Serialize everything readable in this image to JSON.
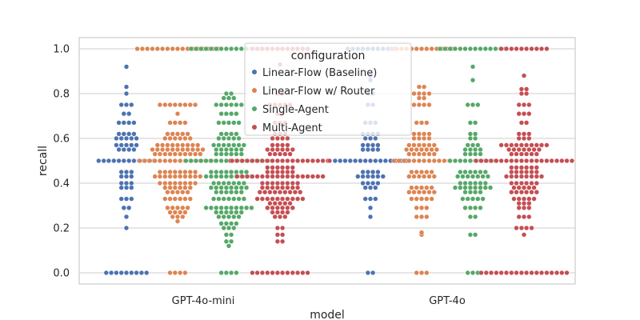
{
  "chart_data": {
    "type": "scatter",
    "subtype": "swarm",
    "title": "",
    "xlabel": "model",
    "ylabel": "recall",
    "ylim": [
      -0.05,
      1.05
    ],
    "yticks": [
      "0.0",
      "0.2",
      "0.4",
      "0.6",
      "0.8",
      "1.0"
    ],
    "ytick_values": [
      0.0,
      0.2,
      0.4,
      0.6,
      0.8,
      1.0
    ],
    "grid": "horizontal",
    "legend_title": "configuration",
    "legend_position": "top-center",
    "categories": [
      "GPT-4o-mini",
      "GPT-4o"
    ],
    "series": [
      {
        "name": "Linear-Flow (Baseline)",
        "color": "#4c72b0",
        "groups": [
          {
            "model": "GPT-4o-mini",
            "values": [
              {
                "y": 0.0,
                "n": 9
              },
              {
                "y": 0.2,
                "n": 1
              },
              {
                "y": 0.25,
                "n": 1
              },
              {
                "y": 0.29,
                "n": 2
              },
              {
                "y": 0.33,
                "n": 3
              },
              {
                "y": 0.38,
                "n": 3
              },
              {
                "y": 0.4,
                "n": 3
              },
              {
                "y": 0.43,
                "n": 3
              },
              {
                "y": 0.45,
                "n": 3
              },
              {
                "y": 0.5,
                "n": 12
              },
              {
                "y": 0.55,
                "n": 4
              },
              {
                "y": 0.57,
                "n": 5
              },
              {
                "y": 0.6,
                "n": 5
              },
              {
                "y": 0.62,
                "n": 4
              },
              {
                "y": 0.67,
                "n": 4
              },
              {
                "y": 0.71,
                "n": 2
              },
              {
                "y": 0.75,
                "n": 3
              },
              {
                "y": 0.8,
                "n": 1
              },
              {
                "y": 0.83,
                "n": 1
              },
              {
                "y": 0.92,
                "n": 1
              }
            ]
          },
          {
            "model": "GPT-4o",
            "values": [
              {
                "y": 0.0,
                "n": 2
              },
              {
                "y": 0.25,
                "n": 1
              },
              {
                "y": 0.29,
                "n": 1
              },
              {
                "y": 0.33,
                "n": 3
              },
              {
                "y": 0.38,
                "n": 3
              },
              {
                "y": 0.4,
                "n": 4
              },
              {
                "y": 0.43,
                "n": 6
              },
              {
                "y": 0.45,
                "n": 4
              },
              {
                "y": 0.5,
                "n": 15
              },
              {
                "y": 0.55,
                "n": 4
              },
              {
                "y": 0.57,
                "n": 4
              },
              {
                "y": 0.6,
                "n": 3
              },
              {
                "y": 0.62,
                "n": 4
              },
              {
                "y": 0.67,
                "n": 3
              },
              {
                "y": 0.75,
                "n": 2
              },
              {
                "y": 0.8,
                "n": 2
              },
              {
                "y": 0.86,
                "n": 1
              },
              {
                "y": 0.88,
                "n": 1
              },
              {
                "y": 1.0,
                "n": 10
              }
            ]
          }
        ]
      },
      {
        "name": "Linear-Flow w/ Router",
        "color": "#dd8452",
        "groups": [
          {
            "model": "GPT-4o-mini",
            "values": [
              {
                "y": 0.0,
                "n": 4
              },
              {
                "y": 0.23,
                "n": 1
              },
              {
                "y": 0.25,
                "n": 3
              },
              {
                "y": 0.27,
                "n": 4
              },
              {
                "y": 0.29,
                "n": 5
              },
              {
                "y": 0.33,
                "n": 6
              },
              {
                "y": 0.36,
                "n": 5
              },
              {
                "y": 0.38,
                "n": 6
              },
              {
                "y": 0.4,
                "n": 8
              },
              {
                "y": 0.43,
                "n": 10
              },
              {
                "y": 0.45,
                "n": 8
              },
              {
                "y": 0.5,
                "n": 16
              },
              {
                "y": 0.53,
                "n": 10
              },
              {
                "y": 0.55,
                "n": 11
              },
              {
                "y": 0.57,
                "n": 9
              },
              {
                "y": 0.6,
                "n": 6
              },
              {
                "y": 0.62,
                "n": 5
              },
              {
                "y": 0.67,
                "n": 4
              },
              {
                "y": 0.71,
                "n": 1
              },
              {
                "y": 0.75,
                "n": 8
              },
              {
                "y": 1.0,
                "n": 17
              }
            ]
          },
          {
            "model": "GPT-4o",
            "values": [
              {
                "y": 0.0,
                "n": 3
              },
              {
                "y": 0.17,
                "n": 1
              },
              {
                "y": 0.18,
                "n": 1
              },
              {
                "y": 0.25,
                "n": 3
              },
              {
                "y": 0.29,
                "n": 3
              },
              {
                "y": 0.33,
                "n": 5
              },
              {
                "y": 0.36,
                "n": 6
              },
              {
                "y": 0.38,
                "n": 5
              },
              {
                "y": 0.43,
                "n": 6
              },
              {
                "y": 0.45,
                "n": 5
              },
              {
                "y": 0.5,
                "n": 12
              },
              {
                "y": 0.53,
                "n": 6
              },
              {
                "y": 0.55,
                "n": 7
              },
              {
                "y": 0.57,
                "n": 6
              },
              {
                "y": 0.6,
                "n": 4
              },
              {
                "y": 0.62,
                "n": 4
              },
              {
                "y": 0.67,
                "n": 3
              },
              {
                "y": 0.75,
                "n": 4
              },
              {
                "y": 0.78,
                "n": 2
              },
              {
                "y": 0.8,
                "n": 4
              },
              {
                "y": 0.83,
                "n": 2
              },
              {
                "y": 1.0,
                "n": 13
              }
            ]
          }
        ]
      },
      {
        "name": "Single-Agent",
        "color": "#55a868",
        "groups": [
          {
            "model": "GPT-4o-mini",
            "values": [
              {
                "y": 0.0,
                "n": 4
              },
              {
                "y": 0.12,
                "n": 1
              },
              {
                "y": 0.14,
                "n": 2
              },
              {
                "y": 0.17,
                "n": 2
              },
              {
                "y": 0.2,
                "n": 3
              },
              {
                "y": 0.22,
                "n": 4
              },
              {
                "y": 0.25,
                "n": 5
              },
              {
                "y": 0.27,
                "n": 6
              },
              {
                "y": 0.29,
                "n": 10
              },
              {
                "y": 0.33,
                "n": 7
              },
              {
                "y": 0.36,
                "n": 6
              },
              {
                "y": 0.38,
                "n": 8
              },
              {
                "y": 0.4,
                "n": 7
              },
              {
                "y": 0.43,
                "n": 10
              },
              {
                "y": 0.45,
                "n": 8
              },
              {
                "y": 0.5,
                "n": 18
              },
              {
                "y": 0.53,
                "n": 6
              },
              {
                "y": 0.55,
                "n": 6
              },
              {
                "y": 0.57,
                "n": 7
              },
              {
                "y": 0.6,
                "n": 5
              },
              {
                "y": 0.62,
                "n": 4
              },
              {
                "y": 0.67,
                "n": 5
              },
              {
                "y": 0.71,
                "n": 4
              },
              {
                "y": 0.75,
                "n": 6
              },
              {
                "y": 0.78,
                "n": 3
              },
              {
                "y": 0.8,
                "n": 2
              },
              {
                "y": 1.0,
                "n": 16
              }
            ]
          },
          {
            "model": "GPT-4o",
            "values": [
              {
                "y": 0.0,
                "n": 3
              },
              {
                "y": 0.17,
                "n": 2
              },
              {
                "y": 0.25,
                "n": 2
              },
              {
                "y": 0.29,
                "n": 4
              },
              {
                "y": 0.33,
                "n": 5
              },
              {
                "y": 0.36,
                "n": 4
              },
              {
                "y": 0.38,
                "n": 8
              },
              {
                "y": 0.4,
                "n": 6
              },
              {
                "y": 0.43,
                "n": 7
              },
              {
                "y": 0.45,
                "n": 6
              },
              {
                "y": 0.5,
                "n": 10
              },
              {
                "y": 0.53,
                "n": 4
              },
              {
                "y": 0.55,
                "n": 4
              },
              {
                "y": 0.57,
                "n": 3
              },
              {
                "y": 0.6,
                "n": 2
              },
              {
                "y": 0.62,
                "n": 2
              },
              {
                "y": 0.67,
                "n": 2
              },
              {
                "y": 0.75,
                "n": 3
              },
              {
                "y": 0.86,
                "n": 1
              },
              {
                "y": 0.92,
                "n": 1
              },
              {
                "y": 1.0,
                "n": 14
              }
            ]
          }
        ]
      },
      {
        "name": "Multi-Agent",
        "color": "#c44e52",
        "groups": [
          {
            "model": "GPT-4o-mini",
            "values": [
              {
                "y": 0.0,
                "n": 12
              },
              {
                "y": 0.14,
                "n": 2
              },
              {
                "y": 0.17,
                "n": 2
              },
              {
                "y": 0.2,
                "n": 2
              },
              {
                "y": 0.25,
                "n": 3
              },
              {
                "y": 0.27,
                "n": 4
              },
              {
                "y": 0.29,
                "n": 6
              },
              {
                "y": 0.31,
                "n": 5
              },
              {
                "y": 0.33,
                "n": 10
              },
              {
                "y": 0.36,
                "n": 9
              },
              {
                "y": 0.38,
                "n": 8
              },
              {
                "y": 0.4,
                "n": 8
              },
              {
                "y": 0.43,
                "n": 18
              },
              {
                "y": 0.45,
                "n": 6
              },
              {
                "y": 0.47,
                "n": 6
              },
              {
                "y": 0.5,
                "n": 22
              },
              {
                "y": 0.53,
                "n": 5
              },
              {
                "y": 0.55,
                "n": 6
              },
              {
                "y": 0.57,
                "n": 4
              },
              {
                "y": 0.6,
                "n": 4
              },
              {
                "y": 0.62,
                "n": 3
              },
              {
                "y": 0.67,
                "n": 3
              },
              {
                "y": 0.71,
                "n": 2
              },
              {
                "y": 0.75,
                "n": 5
              },
              {
                "y": 0.8,
                "n": 2
              },
              {
                "y": 0.93,
                "n": 1
              },
              {
                "y": 1.0,
                "n": 12
              }
            ]
          },
          {
            "model": "GPT-4o",
            "values": [
              {
                "y": 0.0,
                "n": 18
              },
              {
                "y": 0.17,
                "n": 1
              },
              {
                "y": 0.2,
                "n": 4
              },
              {
                "y": 0.25,
                "n": 3
              },
              {
                "y": 0.29,
                "n": 3
              },
              {
                "y": 0.31,
                "n": 3
              },
              {
                "y": 0.33,
                "n": 5
              },
              {
                "y": 0.36,
                "n": 6
              },
              {
                "y": 0.38,
                "n": 5
              },
              {
                "y": 0.4,
                "n": 6
              },
              {
                "y": 0.43,
                "n": 8
              },
              {
                "y": 0.45,
                "n": 6
              },
              {
                "y": 0.47,
                "n": 6
              },
              {
                "y": 0.5,
                "n": 20
              },
              {
                "y": 0.53,
                "n": 6
              },
              {
                "y": 0.55,
                "n": 7
              },
              {
                "y": 0.57,
                "n": 10
              },
              {
                "y": 0.6,
                "n": 3
              },
              {
                "y": 0.62,
                "n": 3
              },
              {
                "y": 0.67,
                "n": 2
              },
              {
                "y": 0.71,
                "n": 3
              },
              {
                "y": 0.75,
                "n": 3
              },
              {
                "y": 0.8,
                "n": 2
              },
              {
                "y": 0.82,
                "n": 2
              },
              {
                "y": 0.88,
                "n": 1
              },
              {
                "y": 1.0,
                "n": 10
              }
            ]
          }
        ]
      }
    ]
  }
}
